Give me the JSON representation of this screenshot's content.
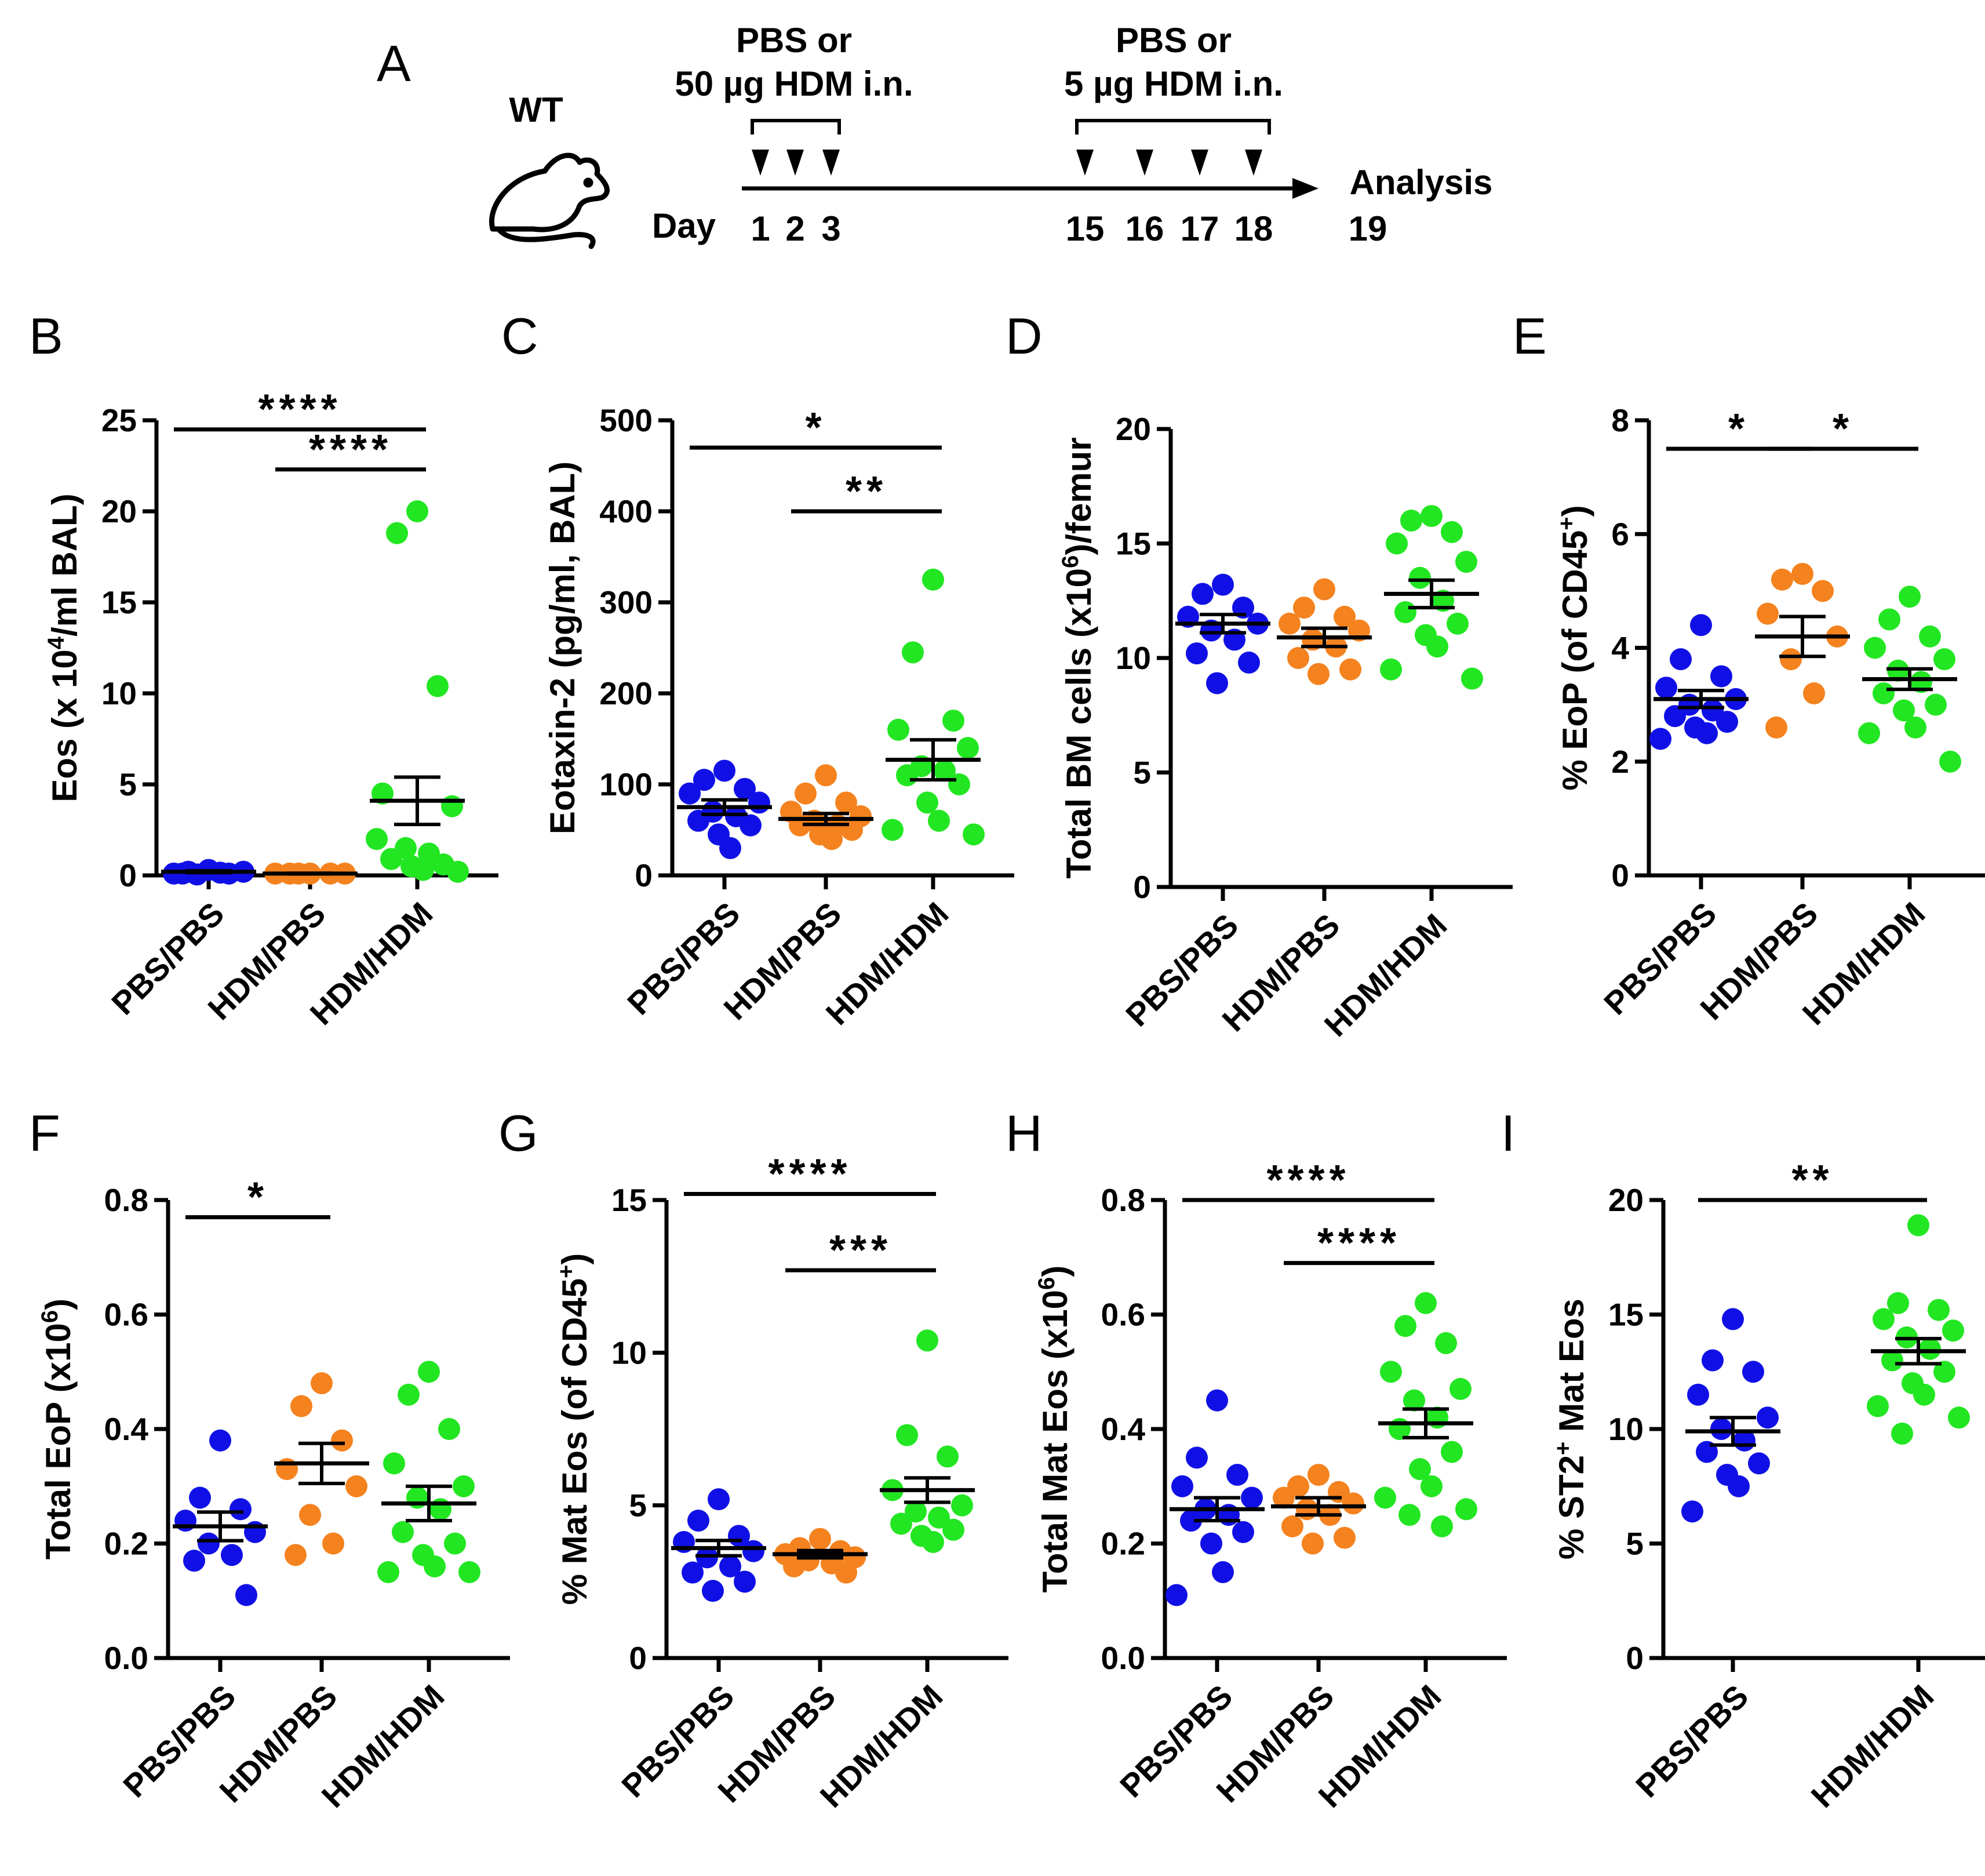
{
  "colors": {
    "PBS/PBS": "#1010e6",
    "HDM/PBS": "#f4821e",
    "HDM/HDM": "#22e622",
    "axis": "#000000"
  },
  "timeline": {
    "panel": "A",
    "strain": "WT",
    "sens_label_1": "PBS or",
    "sens_label_2": "50 µg HDM i.n.",
    "chal_label_1": "PBS or",
    "chal_label_2": "5 µg HDM i.n.",
    "day_label": "Day",
    "sens_days": [
      "1",
      "2",
      "3"
    ],
    "chal_days": [
      "15",
      "16",
      "17",
      "18"
    ],
    "analysis_label": "Analysis",
    "analysis_day": "19",
    "mouse_icon": "mouse-icon"
  },
  "chart_data": [
    {
      "panel": "B",
      "type": "scatter",
      "ylabel_pre": "Eos (x 10",
      "ylabel_sup": "4",
      "ylabel_post": "/ml BAL)",
      "ylim": [
        0,
        25
      ],
      "yticks": [
        "0",
        "5",
        "10",
        "15",
        "20",
        "25"
      ],
      "categories": [
        "PBS/PBS",
        "HDM/PBS",
        "HDM/HDM"
      ],
      "series": [
        {
          "name": "PBS/PBS",
          "values": [
            0.3,
            0.2,
            0.1,
            0.1,
            0.2,
            0.05,
            0.15,
            0.1
          ],
          "mean": 0.2,
          "sem": 0.05
        },
        {
          "name": "HDM/PBS",
          "values": [
            0.1,
            0.1,
            0.1,
            0.1,
            0.1,
            0.1
          ],
          "mean": 0.1,
          "sem": 0.02
        },
        {
          "name": "HDM/HDM",
          "values": [
            20,
            18.8,
            10.4,
            4.5,
            3.8,
            1.5,
            1.2,
            0.9,
            0.6,
            0.5,
            0.3,
            2.0,
            0.2
          ],
          "mean": 4.1,
          "sem": 1.3
        }
      ],
      "significance": [
        {
          "from": 0,
          "to": 2,
          "label": "****",
          "y": 24.5
        },
        {
          "from": 1,
          "to": 2,
          "label": "****",
          "y": 22.3
        }
      ]
    },
    {
      "panel": "C",
      "type": "scatter",
      "ylabel": "Eotaxin-2 (pg/ml, BAL)",
      "ylim": [
        0,
        500
      ],
      "yticks": [
        "0",
        "100",
        "200",
        "300",
        "400",
        "500"
      ],
      "categories": [
        "PBS/PBS",
        "HDM/PBS",
        "HDM/HDM"
      ],
      "series": [
        {
          "name": "PBS/PBS",
          "values": [
            115,
            105,
            95,
            90,
            80,
            70,
            65,
            60,
            55,
            45,
            30
          ],
          "mean": 75,
          "sem": 8
        },
        {
          "name": "HDM/PBS",
          "values": [
            110,
            90,
            80,
            70,
            65,
            60,
            55,
            55,
            50,
            45,
            40
          ],
          "mean": 62,
          "sem": 6
        },
        {
          "name": "HDM/HDM",
          "values": [
            325,
            245,
            170,
            160,
            140,
            120,
            115,
            110,
            100,
            80,
            60,
            50,
            45
          ],
          "mean": 127,
          "sem": 22
        }
      ],
      "significance": [
        {
          "from": 0,
          "to": 2,
          "label": "*",
          "y": 470
        },
        {
          "from": 1,
          "to": 2,
          "label": "**",
          "y": 400
        }
      ]
    },
    {
      "panel": "D",
      "type": "scatter",
      "ylabel_pre": "Total BM cells (x10",
      "ylabel_sup": "6",
      "ylabel_post": ")/femur",
      "ylim": [
        0,
        20
      ],
      "yticks": [
        "0",
        "5",
        "10",
        "15",
        "20"
      ],
      "categories": [
        "PBS/PBS",
        "HDM/PBS",
        "HDM/HDM"
      ],
      "series": [
        {
          "name": "PBS/PBS",
          "values": [
            13.2,
            12.8,
            12.2,
            11.8,
            11.5,
            11.2,
            10.8,
            10.2,
            9.8,
            8.9
          ],
          "mean": 11.5,
          "sem": 0.4
        },
        {
          "name": "HDM/PBS",
          "values": [
            13.0,
            12.2,
            11.8,
            11.5,
            11.2,
            10.8,
            10.5,
            10.0,
            9.5,
            9.3
          ],
          "mean": 10.9,
          "sem": 0.4
        },
        {
          "name": "HDM/HDM",
          "values": [
            16.2,
            16.0,
            15.5,
            15.0,
            14.2,
            13.5,
            12.5,
            12.0,
            11.5,
            11.0,
            10.5,
            9.5,
            9.1
          ],
          "mean": 12.8,
          "sem": 0.6
        }
      ],
      "significance": []
    },
    {
      "panel": "E",
      "type": "scatter",
      "ylabel_pre": "% EoP (of CD45",
      "ylabel_sup": "+",
      "ylabel_post": ")",
      "ylim": [
        0,
        8
      ],
      "yticks": [
        "0",
        "2",
        "4",
        "6",
        "8"
      ],
      "categories": [
        "PBS/PBS",
        "HDM/PBS",
        "HDM/HDM"
      ],
      "series": [
        {
          "name": "PBS/PBS",
          "values": [
            4.4,
            3.8,
            3.5,
            3.3,
            3.1,
            3.0,
            2.9,
            2.8,
            2.7,
            2.6,
            2.5,
            2.4
          ],
          "mean": 3.1,
          "sem": 0.15
        },
        {
          "name": "HDM/PBS",
          "values": [
            5.3,
            5.2,
            5.0,
            4.6,
            4.2,
            3.8,
            3.2,
            2.6
          ],
          "mean": 4.2,
          "sem": 0.35
        },
        {
          "name": "HDM/HDM",
          "values": [
            4.9,
            4.5,
            4.2,
            4.0,
            3.8,
            3.6,
            3.4,
            3.2,
            3.0,
            2.9,
            2.6,
            2.5,
            2.0
          ],
          "mean": 3.45,
          "sem": 0.18
        }
      ],
      "significance": [
        {
          "from": 0,
          "to": 1,
          "label": "*",
          "y": 7.5
        },
        {
          "from": 1,
          "to": 2,
          "label": "*",
          "y": 7.5
        }
      ]
    },
    {
      "panel": "F",
      "type": "scatter",
      "ylabel_pre": "Total EoP (x10",
      "ylabel_sup": "6",
      "ylabel_post": ")",
      "ylim": [
        0,
        0.8
      ],
      "yticks": [
        "0.0",
        "0.2",
        "0.4",
        "0.6",
        "0.8"
      ],
      "categories": [
        "PBS/PBS",
        "HDM/PBS",
        "HDM/HDM"
      ],
      "series": [
        {
          "name": "PBS/PBS",
          "values": [
            0.38,
            0.28,
            0.26,
            0.24,
            0.22,
            0.2,
            0.18,
            0.17,
            0.11
          ],
          "mean": 0.23,
          "sem": 0.025
        },
        {
          "name": "HDM/PBS",
          "values": [
            0.48,
            0.44,
            0.38,
            0.33,
            0.3,
            0.25,
            0.2,
            0.18
          ],
          "mean": 0.34,
          "sem": 0.035
        },
        {
          "name": "HDM/HDM",
          "values": [
            0.5,
            0.46,
            0.4,
            0.34,
            0.3,
            0.28,
            0.26,
            0.22,
            0.2,
            0.18,
            0.16,
            0.15,
            0.15
          ],
          "mean": 0.27,
          "sem": 0.03
        }
      ],
      "significance": [
        {
          "from": 0,
          "to": 1,
          "label": "*",
          "y": 0.77
        }
      ]
    },
    {
      "panel": "G",
      "type": "scatter",
      "ylabel_pre": "% Mat Eos (of CD45",
      "ylabel_sup": "+",
      "ylabel_post": ")",
      "ylim": [
        0,
        15
      ],
      "yticks": [
        "0",
        "5",
        "10",
        "15"
      ],
      "categories": [
        "PBS/PBS",
        "HDM/PBS",
        "HDM/HDM"
      ],
      "series": [
        {
          "name": "PBS/PBS",
          "values": [
            5.2,
            4.5,
            4.0,
            3.8,
            3.5,
            3.3,
            3.0,
            2.8,
            2.5,
            2.2
          ],
          "mean": 3.6,
          "sem": 0.25
        },
        {
          "name": "HDM/PBS",
          "values": [
            3.9,
            3.6,
            3.5,
            3.4,
            3.3,
            3.2,
            3.1,
            3.0,
            2.8
          ],
          "mean": 3.4,
          "sem": 0.12
        },
        {
          "name": "HDM/HDM",
          "values": [
            10.4,
            7.3,
            6.6,
            5.5,
            5.0,
            4.8,
            4.6,
            4.4,
            4.2,
            4.0,
            3.8
          ],
          "mean": 5.5,
          "sem": 0.4
        }
      ],
      "significance": [
        {
          "from": 0,
          "to": 2,
          "label": "****",
          "y": 15.2
        },
        {
          "from": 1,
          "to": 2,
          "label": "***",
          "y": 12.7
        }
      ]
    },
    {
      "panel": "H",
      "type": "scatter",
      "ylabel_pre": "Total Mat Eos (x10",
      "ylabel_sup": "6",
      "ylabel_post": ")",
      "ylim": [
        0,
        0.8
      ],
      "yticks": [
        "0.0",
        "0.2",
        "0.4",
        "0.6",
        "0.8"
      ],
      "categories": [
        "PBS/PBS",
        "HDM/PBS",
        "HDM/HDM"
      ],
      "series": [
        {
          "name": "PBS/PBS",
          "values": [
            0.45,
            0.35,
            0.32,
            0.3,
            0.28,
            0.26,
            0.25,
            0.24,
            0.22,
            0.2,
            0.15,
            0.11
          ],
          "mean": 0.26,
          "sem": 0.02
        },
        {
          "name": "HDM/PBS",
          "values": [
            0.32,
            0.3,
            0.29,
            0.28,
            0.27,
            0.26,
            0.25,
            0.23,
            0.21,
            0.2
          ],
          "mean": 0.265,
          "sem": 0.015
        },
        {
          "name": "HDM/HDM",
          "values": [
            0.62,
            0.58,
            0.55,
            0.5,
            0.47,
            0.45,
            0.42,
            0.4,
            0.36,
            0.33,
            0.3,
            0.28,
            0.26,
            0.25,
            0.23
          ],
          "mean": 0.41,
          "sem": 0.025
        }
      ],
      "significance": [
        {
          "from": 0,
          "to": 2,
          "label": "****",
          "y": 0.8
        },
        {
          "from": 1,
          "to": 2,
          "label": "****",
          "y": 0.69
        }
      ]
    },
    {
      "panel": "I",
      "type": "scatter",
      "ylabel_pre": "% ST2",
      "ylabel_sup": "+",
      "ylabel_post": " Mat Eos",
      "ylim": [
        0,
        20
      ],
      "yticks": [
        "0",
        "5",
        "10",
        "15",
        "20"
      ],
      "categories": [
        "PBS/PBS",
        "HDM/HDM"
      ],
      "series": [
        {
          "name": "PBS/PBS",
          "values": [
            14.8,
            13.0,
            12.5,
            11.5,
            10.5,
            10.0,
            9.5,
            9.0,
            8.5,
            8.0,
            7.5,
            6.4
          ],
          "mean": 9.9,
          "sem": 0.6
        },
        {
          "name": "HDM/HDM",
          "values": [
            18.9,
            15.5,
            15.2,
            14.8,
            14.3,
            14.0,
            13.5,
            13.0,
            12.5,
            12.0,
            11.5,
            11.0,
            10.5,
            9.8
          ],
          "mean": 13.4,
          "sem": 0.55
        }
      ],
      "significance": [
        {
          "from": 0,
          "to": 1,
          "label": "**",
          "y": 20.0
        }
      ]
    }
  ]
}
